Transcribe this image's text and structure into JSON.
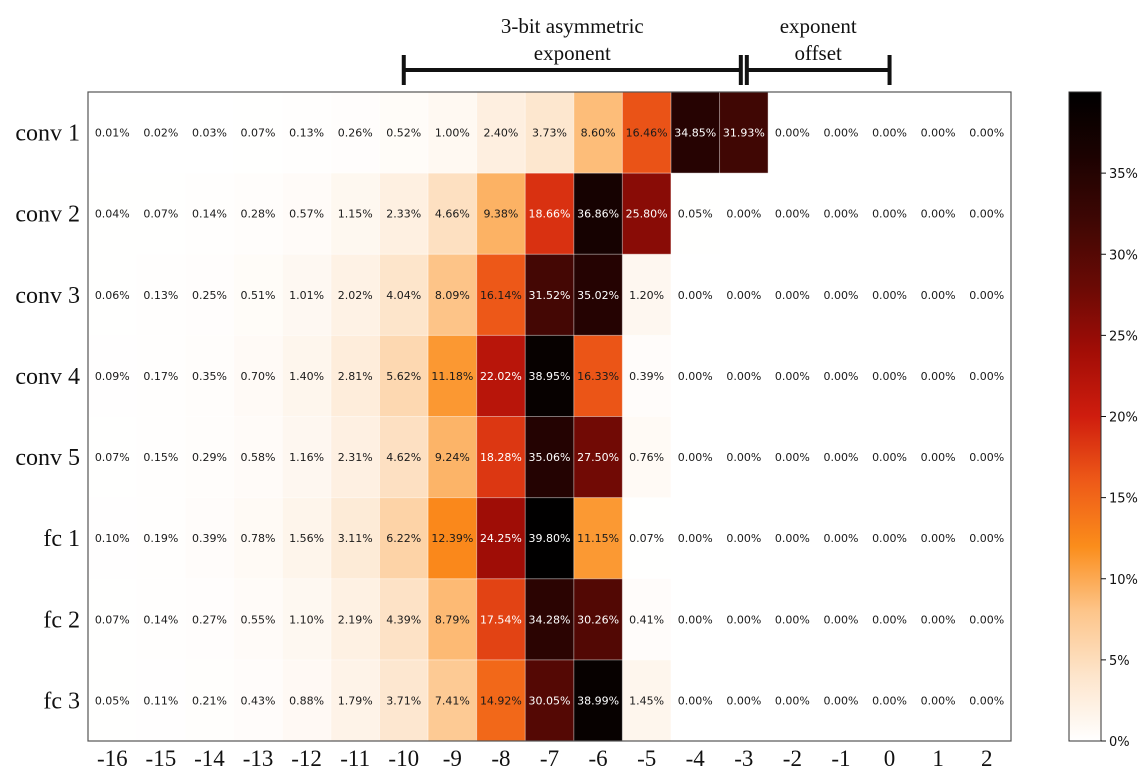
{
  "chart_data": {
    "type": "heatmap",
    "title": "",
    "xlabel": "",
    "ylabel": "",
    "x": [
      "-16",
      "-15",
      "-14",
      "-13",
      "-12",
      "-11",
      "-10",
      "-9",
      "-8",
      "-7",
      "-6",
      "-5",
      "-4",
      "-3",
      "-2",
      "-1",
      "0",
      "1",
      "2"
    ],
    "rows": [
      "conv 1",
      "conv 2",
      "conv 3",
      "conv 4",
      "conv 5",
      "fc 1",
      "fc 2",
      "fc 3"
    ],
    "values": [
      [
        0.01,
        0.02,
        0.03,
        0.07,
        0.13,
        0.26,
        0.52,
        1.0,
        2.4,
        3.73,
        8.6,
        16.46,
        34.85,
        31.93,
        0.0,
        0.0,
        0.0,
        0.0,
        0.0
      ],
      [
        0.04,
        0.07,
        0.14,
        0.28,
        0.57,
        1.15,
        2.33,
        4.66,
        9.38,
        18.66,
        36.86,
        25.8,
        0.05,
        0.0,
        0.0,
        0.0,
        0.0,
        0.0,
        0.0
      ],
      [
        0.06,
        0.13,
        0.25,
        0.51,
        1.01,
        2.02,
        4.04,
        8.09,
        16.14,
        31.52,
        35.02,
        1.2,
        0.0,
        0.0,
        0.0,
        0.0,
        0.0,
        0.0,
        0.0
      ],
      [
        0.09,
        0.17,
        0.35,
        0.7,
        1.4,
        2.81,
        5.62,
        11.18,
        22.02,
        38.95,
        16.33,
        0.39,
        0.0,
        0.0,
        0.0,
        0.0,
        0.0,
        0.0,
        0.0
      ],
      [
        0.07,
        0.15,
        0.29,
        0.58,
        1.16,
        2.31,
        4.62,
        9.24,
        18.28,
        35.06,
        27.5,
        0.76,
        0.0,
        0.0,
        0.0,
        0.0,
        0.0,
        0.0,
        0.0
      ],
      [
        0.1,
        0.19,
        0.39,
        0.78,
        1.56,
        3.11,
        6.22,
        12.39,
        24.25,
        39.8,
        11.15,
        0.07,
        0.0,
        0.0,
        0.0,
        0.0,
        0.0,
        0.0,
        0.0
      ],
      [
        0.07,
        0.14,
        0.27,
        0.55,
        1.1,
        2.19,
        4.39,
        8.79,
        17.54,
        34.28,
        30.26,
        0.41,
        0.0,
        0.0,
        0.0,
        0.0,
        0.0,
        0.0,
        0.0
      ],
      [
        0.05,
        0.11,
        0.21,
        0.43,
        0.88,
        1.79,
        3.71,
        7.41,
        14.92,
        30.05,
        38.99,
        1.45,
        0.0,
        0.0,
        0.0,
        0.0,
        0.0,
        0.0,
        0.0
      ]
    ],
    "value_suffix": "%",
    "colormap": "gist_heat_r",
    "colorbar": {
      "range": [
        0,
        40
      ],
      "ticks": [
        0,
        5,
        10,
        15,
        20,
        25,
        30,
        35
      ],
      "tick_labels": [
        "0%",
        "5%",
        "10%",
        "15%",
        "20%",
        "25%",
        "30%",
        "35%"
      ]
    },
    "annotations": [
      {
        "text_lines": [
          "3-bit asymmetric",
          "exponent"
        ],
        "x_from": "-10",
        "x_to": "-3"
      },
      {
        "text_lines": [
          "exponent",
          "offset"
        ],
        "x_from": "-3",
        "x_to": "0"
      }
    ],
    "grid": true
  }
}
